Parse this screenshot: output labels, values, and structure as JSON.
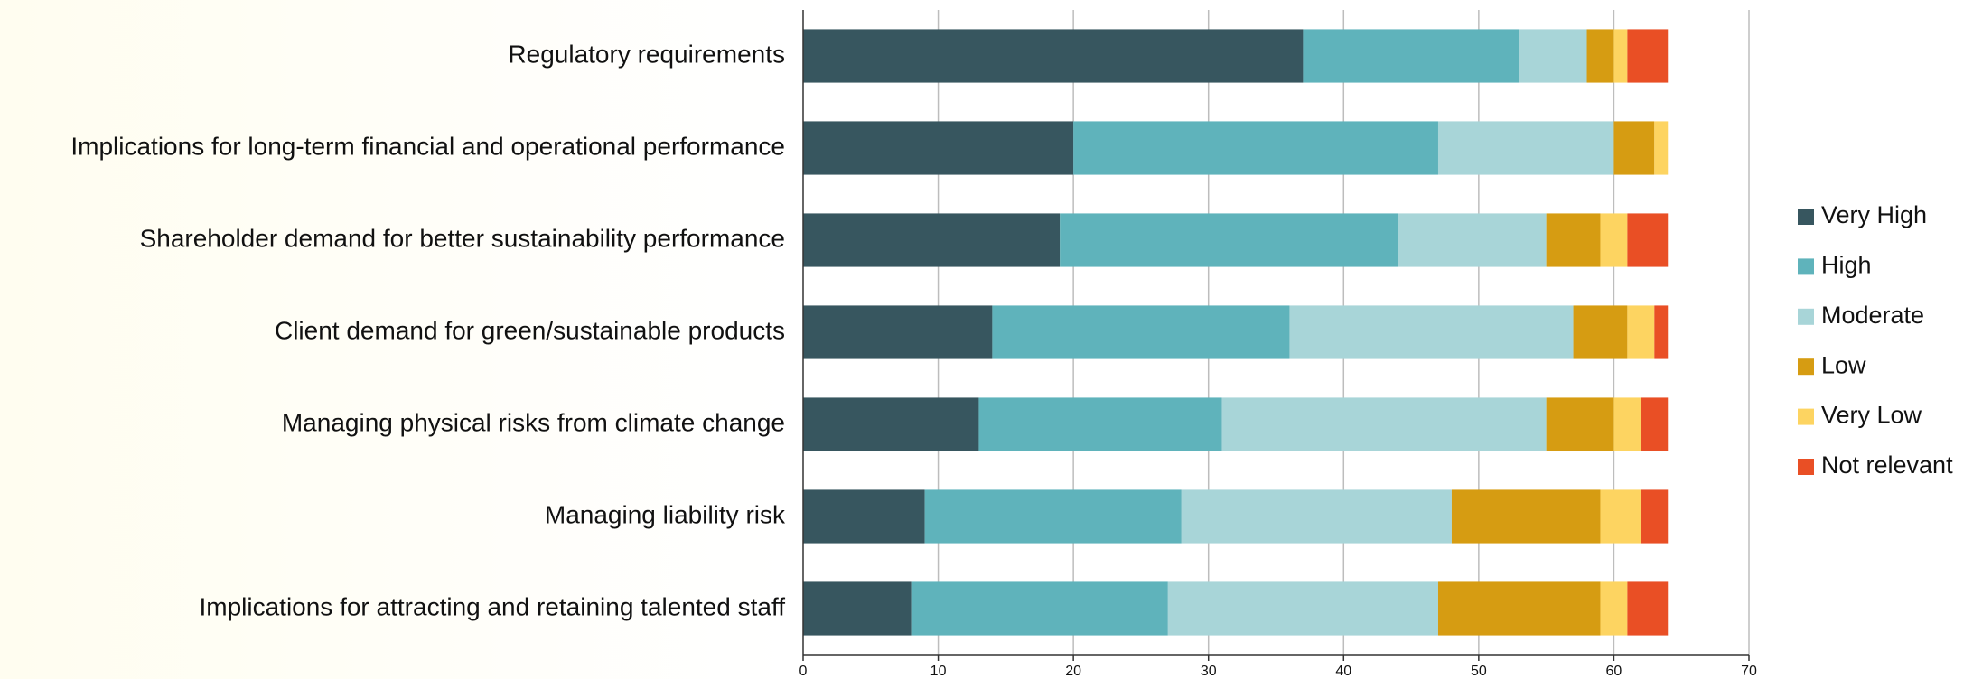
{
  "chart_data": {
    "type": "stacked_barh",
    "categories": [
      "Regulatory requirements",
      "Implications for long-term financial and operational performance",
      "Shareholder demand for better sustainability performance ",
      "Client demand for green/sustainable products",
      "Managing physical risks from climate change",
      "Managing liability risk",
      "Implications for attracting and retaining talented staff"
    ],
    "series": [
      {
        "name": "Very High",
        "color": "#37565f",
        "values": [
          37,
          20,
          19,
          14,
          13,
          9,
          8
        ]
      },
      {
        "name": "High",
        "color": "#5fb3bb",
        "values": [
          16,
          27,
          25,
          22,
          18,
          19,
          19
        ]
      },
      {
        "name": "Moderate",
        "color": "#a8d5d8",
        "values": [
          5,
          13,
          11,
          21,
          24,
          20,
          20
        ]
      },
      {
        "name": "Low",
        "color": "#d69c12",
        "values": [
          2,
          3,
          4,
          4,
          5,
          11,
          12
        ]
      },
      {
        "name": "Very Low",
        "color": "#fdd461",
        "values": [
          1,
          1,
          2,
          2,
          2,
          3,
          2
        ]
      },
      {
        "name": "Not relevant",
        "color": "#e94f25",
        "values": [
          3,
          0,
          3,
          1,
          2,
          2,
          3
        ]
      }
    ],
    "xlim": [
      0,
      70
    ],
    "xticks": [
      0,
      10,
      20,
      30,
      40,
      50,
      60,
      70
    ],
    "grid": true,
    "legend": "right"
  }
}
